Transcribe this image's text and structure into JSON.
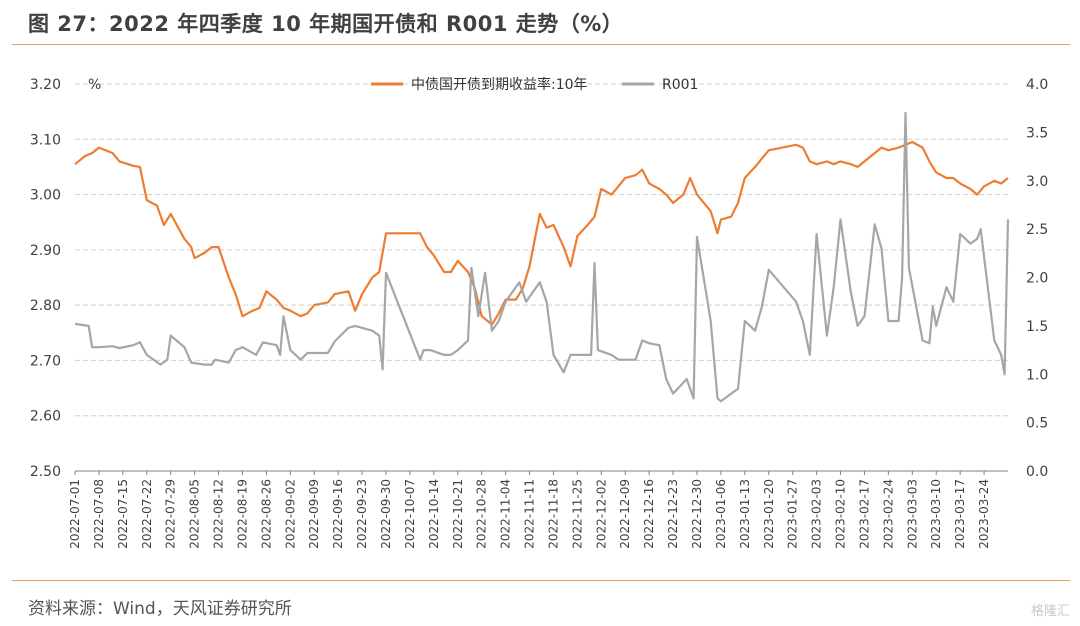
{
  "header": {
    "title": "图 27：2022 年四季度 10 年期国开债和 R001 走势（%）"
  },
  "footer": {
    "source": "资料来源：Wind，天风证券研究所",
    "watermark": "格隆汇"
  },
  "chart_data": {
    "type": "line",
    "title": "",
    "y_left_unit": "%",
    "ylim_left": [
      2.5,
      3.2
    ],
    "ylim_right": [
      0.0,
      4.0
    ],
    "y_left_ticks": [
      "3.20",
      "3.10",
      "3.00",
      "2.90",
      "2.80",
      "2.70",
      "2.60",
      "2.50"
    ],
    "y_right_ticks": [
      "4.0",
      "3.5",
      "3.0",
      "2.5",
      "2.0",
      "1.5",
      "1.0",
      "0.5",
      "0.0"
    ],
    "x_tick_labels": [
      "2022-07-01",
      "2022-07-08",
      "2022-07-15",
      "2022-07-22",
      "2022-07-29",
      "2022-08-05",
      "2022-08-12",
      "2022-08-19",
      "2022-08-26",
      "2022-09-02",
      "2022-09-09",
      "2022-09-16",
      "2022-09-23",
      "2022-09-30",
      "2022-10-07",
      "2022-10-14",
      "2022-10-21",
      "2022-10-28",
      "2022-11-04",
      "2022-11-11",
      "2022-11-18",
      "2022-11-25",
      "2022-12-02",
      "2022-12-09",
      "2022-12-16",
      "2022-12-23",
      "2022-12-30",
      "2023-01-06",
      "2023-01-13",
      "2023-01-20",
      "2023-01-27",
      "2023-02-03",
      "2023-02-10",
      "2023-02-17",
      "2023-02-24",
      "2023-03-03",
      "2023-03-10",
      "2023-03-17",
      "2023-03-24"
    ],
    "grid": "horizontal",
    "legend_position": "top-center",
    "series": [
      {
        "name": "中债国开债到期收益率:10年",
        "axis": "left",
        "color": "#ed7d31",
        "x": [
          "2022-07-01",
          "2022-07-04",
          "2022-07-06",
          "2022-07-08",
          "2022-07-12",
          "2022-07-14",
          "2022-07-18",
          "2022-07-20",
          "2022-07-22",
          "2022-07-25",
          "2022-07-27",
          "2022-07-29",
          "2022-08-02",
          "2022-08-04",
          "2022-08-05",
          "2022-08-08",
          "2022-08-10",
          "2022-08-12",
          "2022-08-15",
          "2022-08-17",
          "2022-08-19",
          "2022-08-22",
          "2022-08-24",
          "2022-08-26",
          "2022-08-29",
          "2022-08-31",
          "2022-09-02",
          "2022-09-05",
          "2022-09-07",
          "2022-09-09",
          "2022-09-13",
          "2022-09-15",
          "2022-09-19",
          "2022-09-21",
          "2022-09-23",
          "2022-09-26",
          "2022-09-28",
          "2022-09-30",
          "2022-10-10",
          "2022-10-12",
          "2022-10-14",
          "2022-10-17",
          "2022-10-19",
          "2022-10-21",
          "2022-10-24",
          "2022-10-26",
          "2022-10-28",
          "2022-10-31",
          "2022-11-02",
          "2022-11-04",
          "2022-11-07",
          "2022-11-09",
          "2022-11-11",
          "2022-11-14",
          "2022-11-16",
          "2022-11-18",
          "2022-11-21",
          "2022-11-23",
          "2022-11-25",
          "2022-11-28",
          "2022-11-30",
          "2022-12-02",
          "2022-12-05",
          "2022-12-07",
          "2022-12-09",
          "2022-12-12",
          "2022-12-14",
          "2022-12-16",
          "2022-12-19",
          "2022-12-21",
          "2022-12-23",
          "2022-12-26",
          "2022-12-28",
          "2022-12-30",
          "2023-01-03",
          "2023-01-05",
          "2023-01-06",
          "2023-01-09",
          "2023-01-11",
          "2023-01-13",
          "2023-01-16",
          "2023-01-18",
          "2023-01-20",
          "2023-01-28",
          "2023-01-30",
          "2023-02-01",
          "2023-02-03",
          "2023-02-06",
          "2023-02-08",
          "2023-02-10",
          "2023-02-13",
          "2023-02-15",
          "2023-02-17",
          "2023-02-20",
          "2023-02-22",
          "2023-02-24",
          "2023-02-27",
          "2023-03-01",
          "2023-03-03",
          "2023-03-06",
          "2023-03-08",
          "2023-03-10",
          "2023-03-13",
          "2023-03-15",
          "2023-03-17",
          "2023-03-20",
          "2023-03-22",
          "2023-03-24",
          "2023-03-27",
          "2023-03-29",
          "2023-03-31"
        ],
        "values": [
          3.055,
          3.07,
          3.075,
          3.085,
          3.075,
          3.06,
          3.052,
          3.05,
          2.99,
          2.98,
          2.945,
          2.965,
          2.92,
          2.905,
          2.885,
          2.895,
          2.905,
          2.905,
          2.85,
          2.82,
          2.78,
          2.79,
          2.795,
          2.825,
          2.81,
          2.795,
          2.79,
          2.78,
          2.785,
          2.8,
          2.805,
          2.82,
          2.825,
          2.79,
          2.82,
          2.85,
          2.86,
          2.93,
          2.93,
          2.905,
          2.89,
          2.86,
          2.86,
          2.88,
          2.86,
          2.83,
          2.78,
          2.765,
          2.785,
          2.81,
          2.81,
          2.83,
          2.87,
          2.965,
          2.94,
          2.945,
          2.905,
          2.87,
          2.925,
          2.945,
          2.96,
          3.01,
          3.0,
          3.015,
          3.03,
          3.035,
          3.045,
          3.02,
          3.01,
          3.0,
          2.985,
          3.0,
          3.03,
          3.0,
          2.97,
          2.93,
          2.955,
          2.96,
          2.985,
          3.03,
          3.05,
          3.065,
          3.08,
          3.09,
          3.085,
          3.06,
          3.055,
          3.06,
          3.055,
          3.06,
          3.055,
          3.05,
          3.06,
          3.075,
          3.085,
          3.08,
          3.085,
          3.09,
          3.095,
          3.085,
          3.06,
          3.04,
          3.03,
          3.03,
          3.02,
          3.01,
          3.0,
          3.015,
          3.025,
          3.02,
          3.03
        ]
      },
      {
        "name": "R001",
        "axis": "right",
        "color": "#a6a6a6",
        "x": [
          "2022-07-01",
          "2022-07-05",
          "2022-07-06",
          "2022-07-08",
          "2022-07-12",
          "2022-07-14",
          "2022-07-18",
          "2022-07-20",
          "2022-07-22",
          "2022-07-26",
          "2022-07-28",
          "2022-07-29",
          "2022-08-02",
          "2022-08-04",
          "2022-08-08",
          "2022-08-10",
          "2022-08-11",
          "2022-08-15",
          "2022-08-17",
          "2022-08-19",
          "2022-08-23",
          "2022-08-25",
          "2022-08-29",
          "2022-08-30",
          "2022-08-31",
          "2022-09-02",
          "2022-09-05",
          "2022-09-07",
          "2022-09-09",
          "2022-09-13",
          "2022-09-15",
          "2022-09-19",
          "2022-09-21",
          "2022-09-26",
          "2022-09-28",
          "2022-09-29",
          "2022-09-30",
          "2022-10-10",
          "2022-10-11",
          "2022-10-13",
          "2022-10-17",
          "2022-10-19",
          "2022-10-21",
          "2022-10-24",
          "2022-10-25",
          "2022-10-27",
          "2022-10-29",
          "2022-10-31",
          "2022-11-02",
          "2022-11-04",
          "2022-11-08",
          "2022-11-10",
          "2022-11-14",
          "2022-11-16",
          "2022-11-18",
          "2022-11-21",
          "2022-11-23",
          "2022-11-25",
          "2022-11-29",
          "2022-11-30",
          "2022-12-01",
          "2022-12-05",
          "2022-12-07",
          "2022-12-09",
          "2022-12-12",
          "2022-12-14",
          "2022-12-16",
          "2022-12-19",
          "2022-12-21",
          "2022-12-23",
          "2022-12-27",
          "2022-12-29",
          "2022-12-30",
          "2023-01-03",
          "2023-01-05",
          "2023-01-06",
          "2023-01-09",
          "2023-01-11",
          "2023-01-13",
          "2023-01-16",
          "2023-01-18",
          "2023-01-20",
          "2023-01-28",
          "2023-01-30",
          "2023-02-01",
          "2023-02-03",
          "2023-02-06",
          "2023-02-08",
          "2023-02-10",
          "2023-02-13",
          "2023-02-15",
          "2023-02-17",
          "2023-02-20",
          "2023-02-22",
          "2023-02-24",
          "2023-02-27",
          "2023-02-28",
          "2023-03-01",
          "2023-03-02",
          "2023-03-06",
          "2023-03-08",
          "2023-03-09",
          "2023-03-10",
          "2023-03-13",
          "2023-03-15",
          "2023-03-17",
          "2023-03-20",
          "2023-03-22",
          "2023-03-23",
          "2023-03-27",
          "2023-03-29",
          "2023-03-30",
          "2023-03-31"
        ],
        "values": [
          1.52,
          1.5,
          1.28,
          1.28,
          1.29,
          1.27,
          1.3,
          1.33,
          1.2,
          1.1,
          1.15,
          1.4,
          1.28,
          1.12,
          1.1,
          1.1,
          1.15,
          1.12,
          1.25,
          1.28,
          1.2,
          1.33,
          1.3,
          1.2,
          1.6,
          1.25,
          1.15,
          1.22,
          1.22,
          1.22,
          1.34,
          1.48,
          1.5,
          1.45,
          1.4,
          1.05,
          2.05,
          1.15,
          1.25,
          1.25,
          1.2,
          1.2,
          1.25,
          1.35,
          2.1,
          1.6,
          2.05,
          1.45,
          1.55,
          1.75,
          1.95,
          1.75,
          1.95,
          1.75,
          1.2,
          1.02,
          1.2,
          1.2,
          1.2,
          2.15,
          1.25,
          1.2,
          1.15,
          1.15,
          1.15,
          1.35,
          1.32,
          1.3,
          0.95,
          0.8,
          0.95,
          0.75,
          2.42,
          1.55,
          0.75,
          0.72,
          0.8,
          0.85,
          1.55,
          1.45,
          1.7,
          2.08,
          1.75,
          1.55,
          1.2,
          2.45,
          1.4,
          1.9,
          2.6,
          1.85,
          1.5,
          1.6,
          2.55,
          2.3,
          1.55,
          1.55,
          2.0,
          3.7,
          2.1,
          1.35,
          1.32,
          1.7,
          1.5,
          1.9,
          1.75,
          2.45,
          2.35,
          2.4,
          2.5,
          1.35,
          1.2,
          1.0,
          2.6
        ]
      }
    ]
  }
}
